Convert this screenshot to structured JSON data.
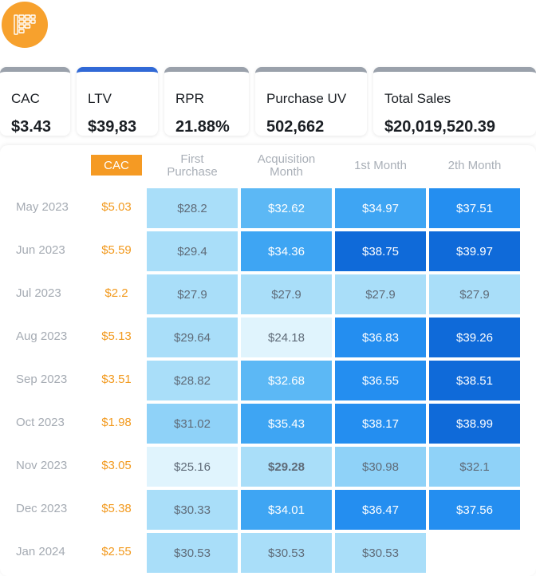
{
  "logo": {
    "icon": "table-grid-icon",
    "color": "#f7a12d"
  },
  "kpis": [
    {
      "label": "CAC",
      "value": "$3.43",
      "active": false
    },
    {
      "label": "LTV",
      "value": "$39,83",
      "active": true
    },
    {
      "label": "RPR",
      "value": "21.88%",
      "active": false
    },
    {
      "label": "Purchase UV",
      "value": "502,662",
      "active": false
    },
    {
      "label": "Total Sales",
      "value": "$20,019,520.39",
      "active": false
    }
  ],
  "table": {
    "cac_header": "CAC",
    "columns": [
      "First\nPurchase",
      "Acquisition\nMonth",
      "1st Month",
      "2th Month"
    ],
    "rows": [
      {
        "label": "May 2023",
        "cac": "$5.03",
        "cells": [
          "$28.2",
          "$32.62",
          "$34.97",
          "$37.51"
        ]
      },
      {
        "label": "Jun 2023",
        "cac": "$5.59",
        "cells": [
          "$29.4",
          "$34.36",
          "$38.75",
          "$39.97"
        ]
      },
      {
        "label": "Jul 2023",
        "cac": "$2.2",
        "cells": [
          "$27.9",
          "$27.9",
          "$27.9",
          "$27.9"
        ]
      },
      {
        "label": "Aug 2023",
        "cac": "$5.13",
        "cells": [
          "$29.64",
          "$24.18",
          "$36.83",
          "$39.26"
        ]
      },
      {
        "label": "Sep 2023",
        "cac": "$3.51",
        "cells": [
          "$28.82",
          "$32.68",
          "$36.55",
          "$38.51"
        ]
      },
      {
        "label": "Oct 2023",
        "cac": "$1.98",
        "cells": [
          "$31.02",
          "$35.43",
          "$38.17",
          "$38.99"
        ]
      },
      {
        "label": "Nov 2023",
        "cac": "$3.05",
        "cells": [
          "$25.16",
          "$29.28",
          "$30.98",
          "$32.1"
        ]
      },
      {
        "label": "Dec 2023",
        "cac": "$5.38",
        "cells": [
          "$30.33",
          "$34.01",
          "$36.47",
          "$37.56"
        ]
      },
      {
        "label": "Jan 2024",
        "cac": "$2.55",
        "cells": [
          "$30.53",
          "$30.53",
          "$30.53"
        ]
      }
    ],
    "colors": {
      "row_label": "#a5abb3",
      "cac_value": "#f29a1f",
      "badge_bg": "#f59a23",
      "kpi_active_bar": "#3169d6",
      "kpi_bar": "#9aa1ab"
    }
  }
}
